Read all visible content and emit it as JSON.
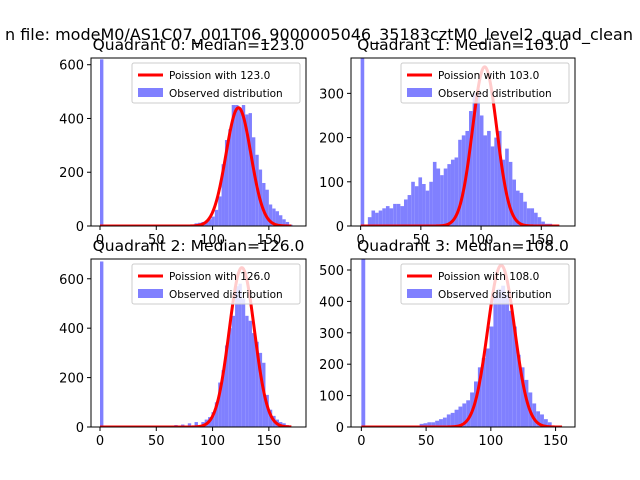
{
  "suptitle": "n file: modeM0/AS1C07_001T06_9000005046_35183cztM0_level2_quad_clean",
  "colors": {
    "hist": "#8080ff",
    "fit": "#ff0000"
  },
  "chart_data": [
    {
      "type": "bar+line",
      "title": "Quadrant 0: Median=123.0",
      "median": 123.0,
      "legend": {
        "location": "top-right",
        "fit_label": "Poission with 123.0",
        "hist_label": "Observed distribution"
      },
      "xlim": [
        -8,
        183
      ],
      "ylim": [
        0,
        625
      ],
      "xticks": [
        0,
        50,
        100,
        150
      ],
      "yticks": [
        0,
        200,
        400,
        600
      ],
      "bin_width": 3,
      "hist": {
        "bin_starts": [
          0,
          84,
          87,
          90,
          93,
          96,
          99,
          102,
          105,
          108,
          111,
          114,
          117,
          120,
          123,
          126,
          129,
          132,
          135,
          138,
          141,
          144,
          147,
          150,
          153,
          156,
          159,
          162,
          165,
          168
        ],
        "counts": [
          620,
          10,
          12,
          15,
          18,
          25,
          35,
          60,
          110,
          230,
          320,
          360,
          450,
          450,
          440,
          450,
          415,
          420,
          330,
          265,
          210,
          160,
          135,
          80,
          65,
          55,
          40,
          25,
          15,
          5
        ]
      },
      "fit": {
        "mu": 123.0,
        "peak": 440,
        "x_range": [
          0,
          170
        ]
      }
    },
    {
      "type": "bar+line",
      "title": "Quadrant 1: Median=103.0",
      "median": 103.0,
      "legend": {
        "location": "top-right",
        "fit_label": "Poission with 103.0",
        "hist_label": "Observed distribution"
      },
      "xlim": [
        -8,
        178
      ],
      "ylim": [
        0,
        380
      ],
      "xticks": [
        0,
        50,
        100,
        150
      ],
      "yticks": [
        0,
        100,
        200,
        300
      ],
      "bin_width": 3,
      "hist": {
        "bin_starts": [
          0,
          6,
          9,
          12,
          15,
          18,
          21,
          24,
          27,
          30,
          33,
          36,
          39,
          42,
          45,
          48,
          51,
          54,
          57,
          60,
          63,
          66,
          69,
          72,
          75,
          78,
          81,
          84,
          87,
          90,
          93,
          96,
          99,
          102,
          105,
          108,
          111,
          114,
          117,
          120,
          123,
          126,
          129,
          132,
          135,
          138,
          141,
          144,
          147,
          150,
          153,
          156,
          159
        ],
        "counts": [
          380,
          20,
          35,
          30,
          35,
          40,
          45,
          40,
          50,
          50,
          45,
          60,
          70,
          100,
          90,
          110,
          95,
          80,
          100,
          145,
          130,
          115,
          130,
          140,
          150,
          155,
          195,
          205,
          215,
          260,
          300,
          310,
          250,
          205,
          215,
          180,
          200,
          215,
          150,
          175,
          145,
          105,
          80,
          75,
          55,
          40,
          40,
          30,
          20,
          10,
          5,
          5,
          3
        ]
      },
      "fit": {
        "mu": 103.0,
        "peak": 360,
        "x_range": [
          0,
          165
        ]
      }
    },
    {
      "type": "bar+line",
      "title": "Quadrant 2: Median=126.0",
      "median": 126.0,
      "legend": {
        "location": "top-right",
        "fit_label": "Poission with 126.0",
        "hist_label": "Observed distribution"
      },
      "xlim": [
        -8,
        183
      ],
      "ylim": [
        0,
        680
      ],
      "xticks": [
        0,
        50,
        100,
        150
      ],
      "yticks": [
        0,
        200,
        400,
        600
      ],
      "bin_width": 3,
      "hist": {
        "bin_starts": [
          0,
          66,
          72,
          78,
          84,
          90,
          93,
          96,
          99,
          102,
          105,
          108,
          111,
          114,
          117,
          120,
          123,
          126,
          129,
          132,
          135,
          138,
          141,
          144,
          147,
          150,
          153,
          156,
          159,
          162,
          165
        ],
        "counts": [
          670,
          8,
          10,
          15,
          20,
          20,
          30,
          40,
          60,
          100,
          180,
          230,
          330,
          400,
          450,
          570,
          580,
          520,
          450,
          430,
          380,
          345,
          300,
          260,
          130,
          70,
          45,
          30,
          20,
          15,
          8
        ]
      },
      "fit": {
        "mu": 126.0,
        "peak": 645,
        "x_range": [
          0,
          170
        ]
      }
    },
    {
      "type": "bar+line",
      "title": "Quadrant 3: Median=108.0",
      "median": 108.0,
      "legend": {
        "location": "top-right",
        "fit_label": "Poission with 108.0",
        "hist_label": "Observed distribution"
      },
      "xlim": [
        -8,
        165
      ],
      "ylim": [
        0,
        535
      ],
      "xticks": [
        0,
        50,
        100,
        150
      ],
      "yticks": [
        0,
        100,
        200,
        300,
        400,
        500
      ],
      "bin_width": 3,
      "hist": {
        "bin_starts": [
          0,
          45,
          48,
          51,
          54,
          57,
          60,
          63,
          66,
          69,
          72,
          75,
          78,
          81,
          84,
          87,
          90,
          93,
          96,
          99,
          102,
          105,
          108,
          111,
          114,
          117,
          120,
          123,
          126,
          129,
          132,
          135,
          138,
          141,
          144
        ],
        "counts": [
          535,
          10,
          12,
          15,
          15,
          20,
          25,
          30,
          40,
          45,
          55,
          65,
          75,
          85,
          110,
          145,
          190,
          220,
          250,
          320,
          420,
          440,
          450,
          420,
          370,
          320,
          230,
          190,
          150,
          110,
          75,
          50,
          40,
          25,
          15
        ]
      },
      "fit": {
        "mu": 108.0,
        "peak": 515,
        "x_range": [
          0,
          155
        ]
      }
    }
  ]
}
